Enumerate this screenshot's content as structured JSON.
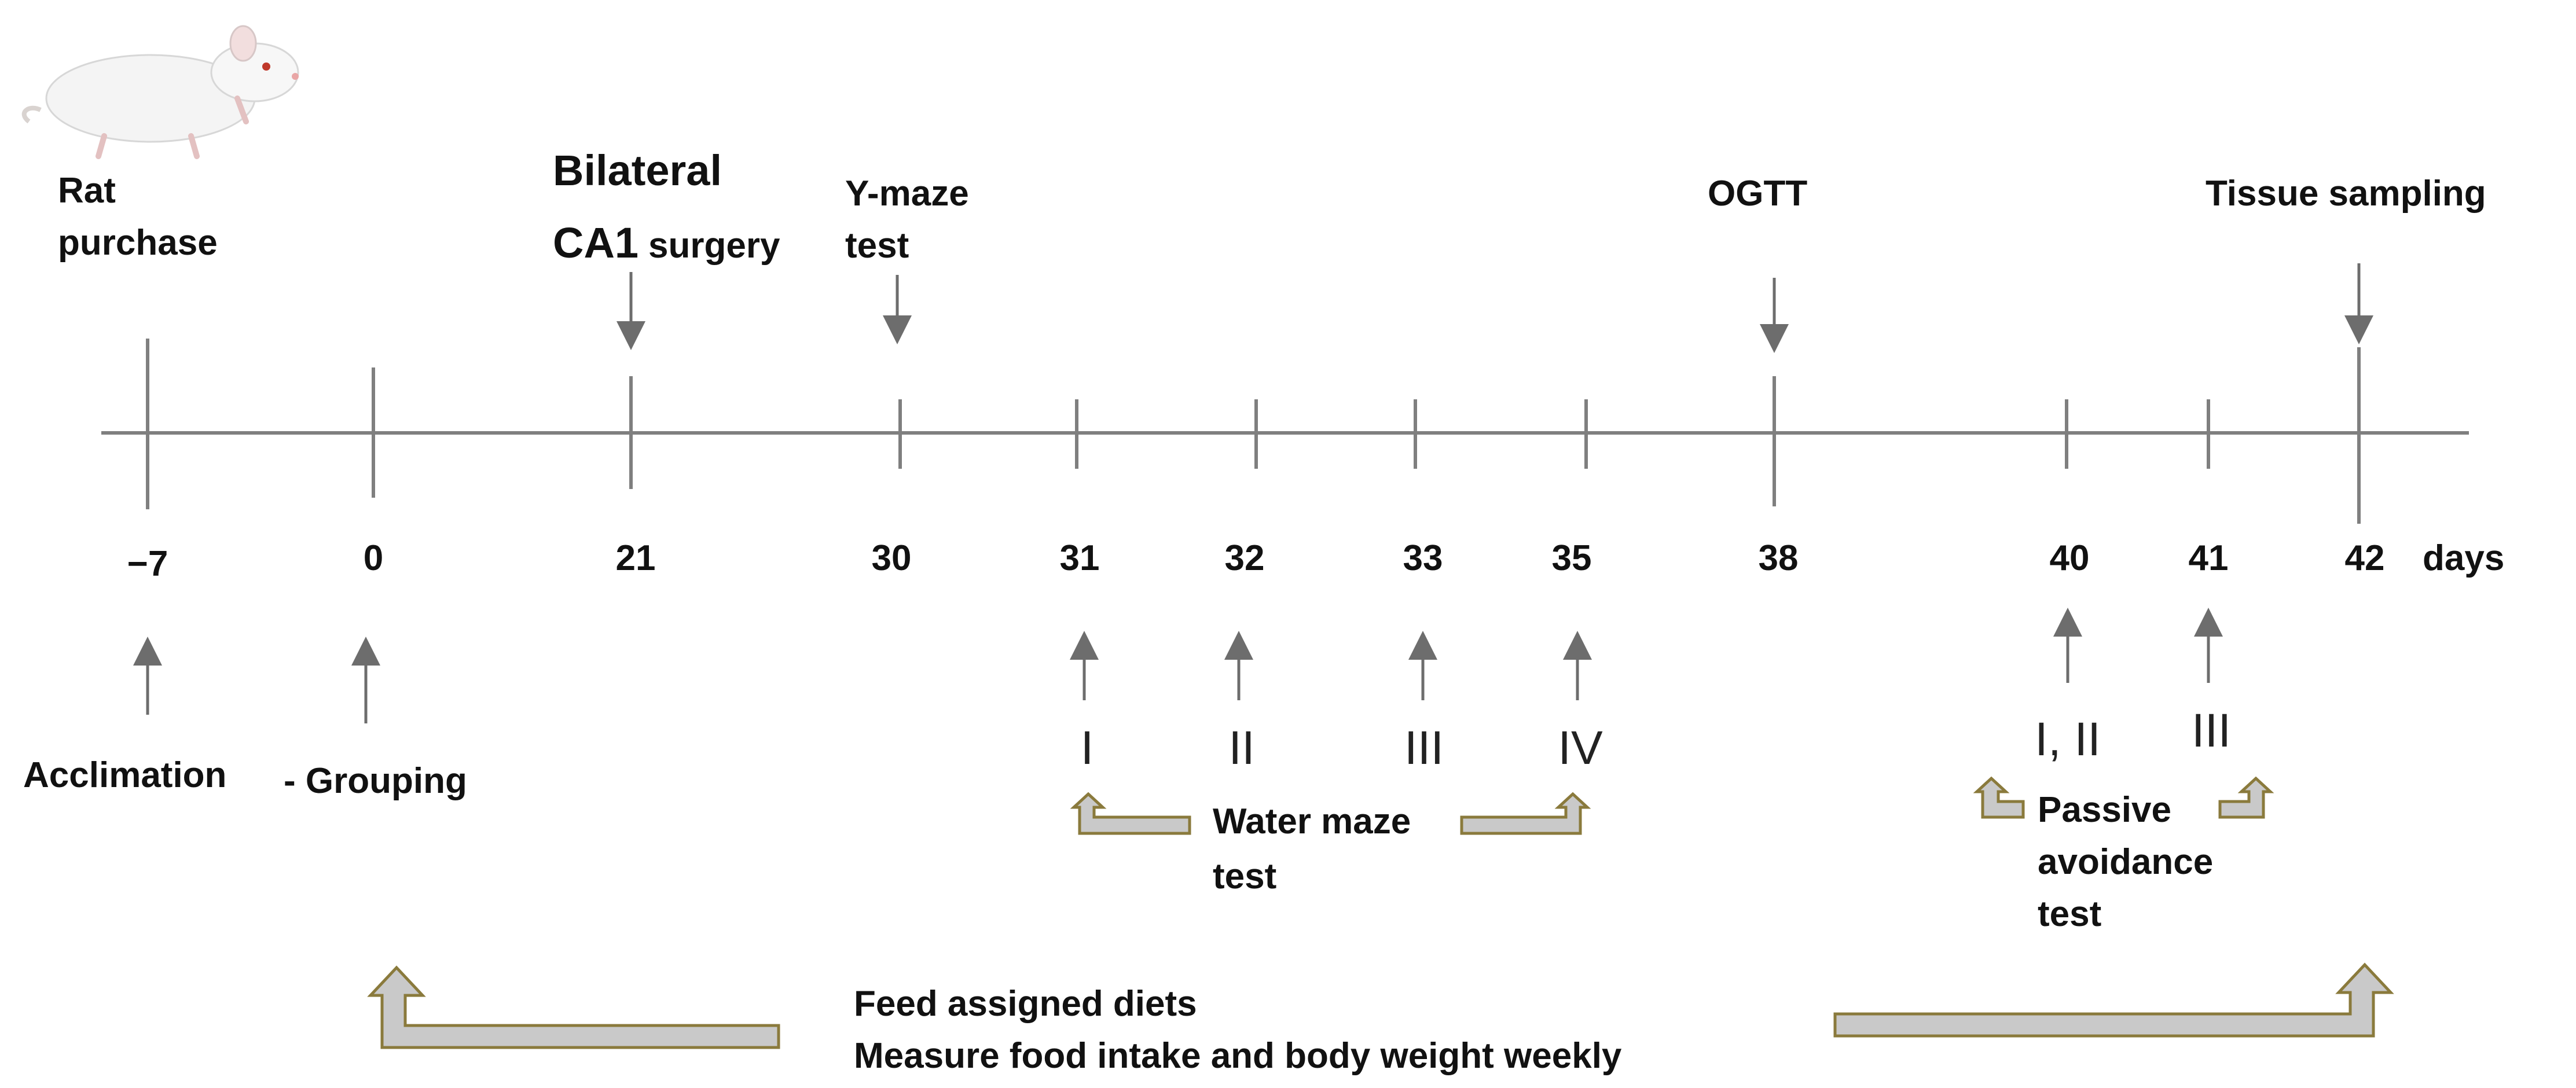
{
  "diagram": {
    "unit": "days",
    "ticks": [
      {
        "day": "−7"
      },
      {
        "day": "0"
      },
      {
        "day": "21"
      },
      {
        "day": "30"
      },
      {
        "day": "31"
      },
      {
        "day": "32"
      },
      {
        "day": "33"
      },
      {
        "day": "35"
      },
      {
        "day": "38"
      },
      {
        "day": "40"
      },
      {
        "day": "41"
      },
      {
        "day": "42"
      }
    ],
    "events_above": {
      "rat_purchase": [
        "Rat",
        "purchase"
      ],
      "bilateral": "Bilateral",
      "ca1": "CA1",
      "surgery": "surgery",
      "ymaze": [
        "Y-maze",
        "test"
      ],
      "ogtt": "OGTT",
      "tissue": "Tissue sampling"
    },
    "events_below": {
      "acclimation": "Acclimation",
      "grouping": "- Grouping"
    },
    "water_maze": {
      "sessions": [
        "I",
        "II",
        "III",
        "IV"
      ],
      "label": [
        "Water maze",
        "test"
      ]
    },
    "passive_avoidance": {
      "sessions": [
        "I, II",
        "III"
      ],
      "label": [
        "Passive",
        "avoidance",
        "test"
      ]
    },
    "diet": {
      "line1": "Feed assigned diets",
      "line2": "Measure food intake and body weight weekly"
    },
    "colors": {
      "line": "#7f7f7f",
      "arrow": "#6d6d6d",
      "bracket_fill": "#c9c9c9",
      "bracket_stroke": "#8a7a3c"
    }
  }
}
